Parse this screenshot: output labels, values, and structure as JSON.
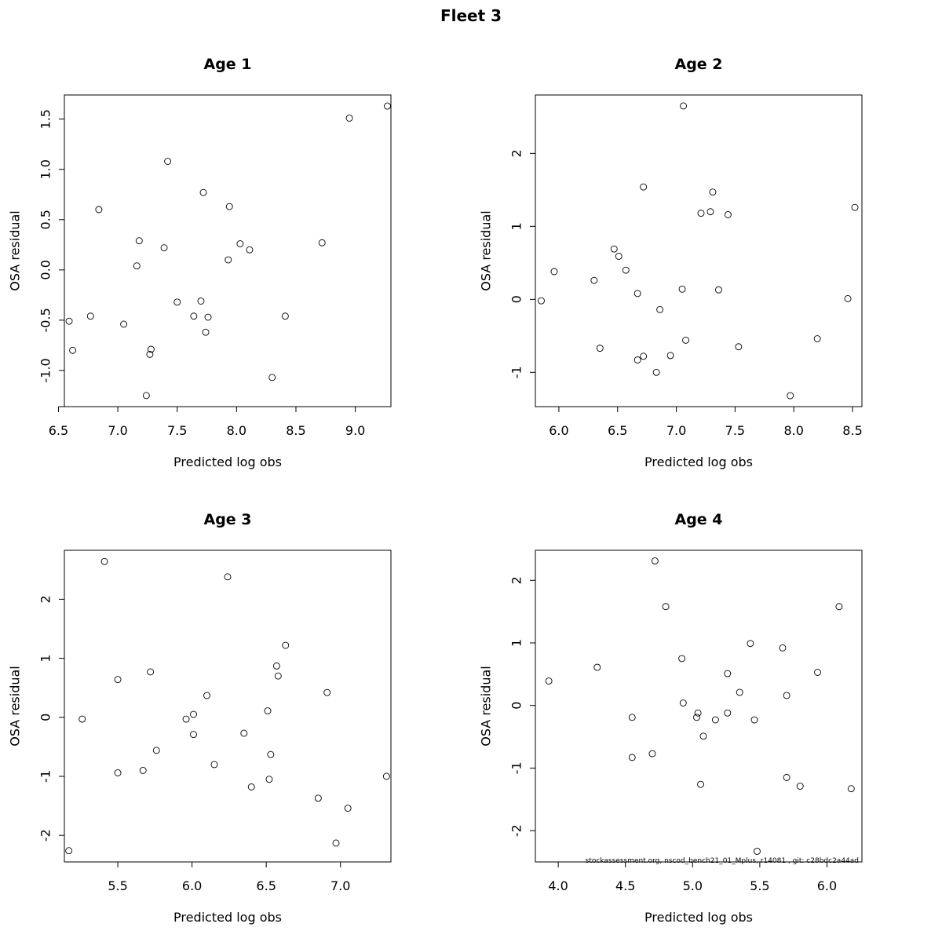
{
  "figure": {
    "title": "Fleet 3",
    "footnote": "stockassessment.org, nscod_bench21_01_Mplus, r14081 , git: c28bdc2a44ad"
  },
  "chart_data": [
    {
      "type": "scatter",
      "title": "Age 1",
      "xlabel": "Predicted log obs",
      "ylabel": "OSA residual",
      "xlim": [
        6.55,
        9.3
      ],
      "ylim": [
        -1.36,
        1.74
      ],
      "xticks": [
        6.5,
        7.0,
        7.5,
        8.0,
        8.5,
        9.0
      ],
      "xtick_labels": [
        "6.5",
        "7.0",
        "7.5",
        "8.0",
        "8.5",
        "9.0"
      ],
      "yticks": [
        -1.0,
        -0.5,
        0.0,
        0.5,
        1.0,
        1.5
      ],
      "ytick_labels": [
        "-1.0",
        "-0.5",
        "0.0",
        "0.5",
        "1.0",
        "1.5"
      ],
      "points": [
        [
          6.59,
          -0.51
        ],
        [
          6.62,
          -0.8
        ],
        [
          6.77,
          -0.46
        ],
        [
          6.84,
          0.6
        ],
        [
          7.05,
          -0.54
        ],
        [
          7.16,
          0.04
        ],
        [
          7.18,
          0.29
        ],
        [
          7.24,
          -1.25
        ],
        [
          7.27,
          -0.84
        ],
        [
          7.28,
          -0.79
        ],
        [
          7.39,
          0.22
        ],
        [
          7.42,
          1.08
        ],
        [
          7.5,
          -0.32
        ],
        [
          7.64,
          -0.46
        ],
        [
          7.7,
          -0.31
        ],
        [
          7.72,
          0.77
        ],
        [
          7.74,
          -0.62
        ],
        [
          7.76,
          -0.47
        ],
        [
          7.93,
          0.1
        ],
        [
          7.94,
          0.63
        ],
        [
          8.03,
          0.26
        ],
        [
          8.11,
          0.2
        ],
        [
          8.3,
          -1.07
        ],
        [
          8.41,
          -0.46
        ],
        [
          8.72,
          0.27
        ],
        [
          8.95,
          1.51
        ],
        [
          9.27,
          1.63
        ]
      ]
    },
    {
      "type": "scatter",
      "title": "Age 2",
      "xlabel": "Predicted log obs",
      "ylabel": "OSA residual",
      "xlim": [
        5.8,
        8.58
      ],
      "ylim": [
        -1.47,
        2.8
      ],
      "xticks": [
        6.0,
        6.5,
        7.0,
        7.5,
        8.0,
        8.5
      ],
      "xtick_labels": [
        "6.0",
        "6.5",
        "7.0",
        "7.5",
        "8.0",
        "8.5"
      ],
      "yticks": [
        -1,
        0,
        1,
        2
      ],
      "ytick_labels": [
        "-1",
        "0",
        "1",
        "2"
      ],
      "points": [
        [
          5.85,
          -0.02
        ],
        [
          5.96,
          0.38
        ],
        [
          6.3,
          0.26
        ],
        [
          6.35,
          -0.67
        ],
        [
          6.47,
          0.69
        ],
        [
          6.51,
          0.59
        ],
        [
          6.57,
          0.4
        ],
        [
          6.67,
          -0.83
        ],
        [
          6.67,
          0.08
        ],
        [
          6.72,
          -0.78
        ],
        [
          6.72,
          1.54
        ],
        [
          6.83,
          -1.0
        ],
        [
          6.86,
          -0.14
        ],
        [
          6.95,
          -0.77
        ],
        [
          7.05,
          0.14
        ],
        [
          7.06,
          2.65
        ],
        [
          7.08,
          -0.56
        ],
        [
          7.21,
          1.18
        ],
        [
          7.29,
          1.2
        ],
        [
          7.31,
          1.47
        ],
        [
          7.36,
          0.13
        ],
        [
          7.44,
          1.16
        ],
        [
          7.53,
          -0.65
        ],
        [
          7.97,
          -1.32
        ],
        [
          8.2,
          -0.54
        ],
        [
          8.46,
          0.01
        ],
        [
          8.52,
          1.26
        ]
      ]
    },
    {
      "type": "scatter",
      "title": "Age 3",
      "xlabel": "Predicted log obs",
      "ylabel": "OSA residual",
      "xlim": [
        5.14,
        7.34
      ],
      "ylim": [
        -2.45,
        2.83
      ],
      "xticks": [
        5.5,
        6.0,
        6.5,
        7.0
      ],
      "xtick_labels": [
        "5.5",
        "6.0",
        "6.5",
        "7.0"
      ],
      "yticks": [
        -2,
        -1,
        0,
        1,
        2
      ],
      "ytick_labels": [
        "-2",
        "-1",
        "0",
        "1",
        "2"
      ],
      "points": [
        [
          5.17,
          -2.26
        ],
        [
          5.26,
          -0.03
        ],
        [
          5.41,
          2.64
        ],
        [
          5.5,
          0.64
        ],
        [
          5.5,
          -0.94
        ],
        [
          5.67,
          -0.9
        ],
        [
          5.72,
          0.77
        ],
        [
          5.76,
          -0.56
        ],
        [
          5.96,
          -0.03
        ],
        [
          6.01,
          0.05
        ],
        [
          6.01,
          -0.29
        ],
        [
          6.1,
          0.37
        ],
        [
          6.15,
          -0.8
        ],
        [
          6.24,
          2.38
        ],
        [
          6.35,
          -0.27
        ],
        [
          6.4,
          -1.18
        ],
        [
          6.51,
          0.11
        ],
        [
          6.52,
          -1.05
        ],
        [
          6.53,
          -0.63
        ],
        [
          6.57,
          0.87
        ],
        [
          6.58,
          0.7
        ],
        [
          6.63,
          1.22
        ],
        [
          6.85,
          -1.37
        ],
        [
          6.91,
          0.42
        ],
        [
          6.97,
          -2.13
        ],
        [
          7.05,
          -1.54
        ],
        [
          7.31,
          -1.0
        ]
      ]
    },
    {
      "type": "scatter",
      "title": "Age 4",
      "xlabel": "Predicted log obs",
      "ylabel": "OSA residual",
      "xlim": [
        3.83,
        6.26
      ],
      "ylim": [
        -2.5,
        2.48
      ],
      "xticks": [
        4.0,
        4.5,
        5.0,
        5.5,
        6.0
      ],
      "xtick_labels": [
        "4.0",
        "4.5",
        "5.0",
        "5.5",
        "6.0"
      ],
      "yticks": [
        -2,
        -1,
        0,
        1,
        2
      ],
      "ytick_labels": [
        "-2",
        "-1",
        "0",
        "1",
        "2"
      ],
      "points": [
        [
          3.93,
          0.39
        ],
        [
          4.29,
          0.61
        ],
        [
          4.55,
          -0.19
        ],
        [
          4.55,
          -0.83
        ],
        [
          4.7,
          -0.77
        ],
        [
          4.72,
          2.31
        ],
        [
          4.8,
          1.58
        ],
        [
          4.92,
          0.75
        ],
        [
          4.93,
          0.04
        ],
        [
          5.03,
          -0.19
        ],
        [
          5.04,
          -0.12
        ],
        [
          5.06,
          -1.26
        ],
        [
          5.08,
          -0.49
        ],
        [
          5.17,
          -0.23
        ],
        [
          5.26,
          0.51
        ],
        [
          5.26,
          -0.12
        ],
        [
          5.35,
          0.21
        ],
        [
          5.43,
          0.99
        ],
        [
          5.46,
          -0.23
        ],
        [
          5.48,
          -2.33
        ],
        [
          5.67,
          0.92
        ],
        [
          5.7,
          0.16
        ],
        [
          5.7,
          -1.15
        ],
        [
          5.8,
          -1.29
        ],
        [
          5.93,
          0.53
        ],
        [
          6.09,
          1.58
        ],
        [
          6.18,
          -1.33
        ]
      ]
    }
  ]
}
